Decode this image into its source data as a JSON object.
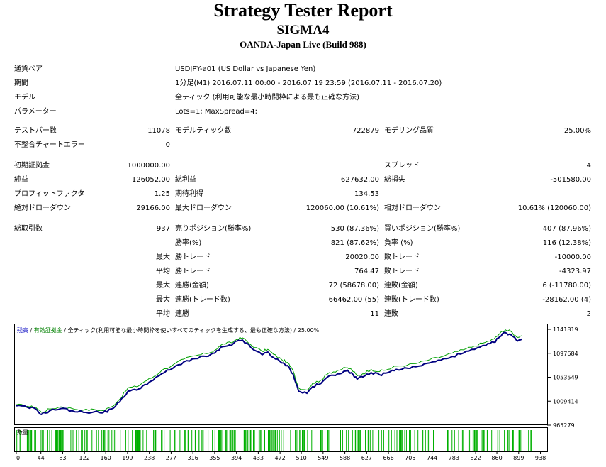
{
  "header": {
    "title": "Strategy Tester Report",
    "expert": "SIGMA4",
    "server": "OANDA-Japan Live (Build 988)"
  },
  "info": {
    "symbol_label": "通貨ペア",
    "symbol_value": "USDJPY-a01 (US Dollar vs Japanese Yen)",
    "period_label": "期間",
    "period_value": "1分足(M1) 2016.07.11 00:00 - 2016.07.19 23:59 (2016.07.11 - 2016.07.20)",
    "model_label": "モデル",
    "model_value": "全ティック (利用可能な最小時間枠による最も正確な方法)",
    "params_label": "パラメーター",
    "params_value": "Lots=1; MaxSpread=4;"
  },
  "stats": {
    "bars_label": "テストバー数",
    "bars_value": "11078",
    "ticks_label": "モデルティック数",
    "ticks_value": "722879",
    "quality_label": "モデリング品質",
    "quality_value": "25.00%",
    "mismatch_label": "不整合チャートエラー",
    "mismatch_value": "0",
    "deposit_label": "初期証拠金",
    "deposit_value": "1000000.00",
    "spread_label": "スプレッド",
    "spread_value": "4",
    "net_label": "純益",
    "net_value": "126052.00",
    "gross_profit_label": "総利益",
    "gross_profit_value": "627632.00",
    "gross_loss_label": "総損失",
    "gross_loss_value": "-501580.00",
    "pf_label": "プロフィットファクタ",
    "pf_value": "1.25",
    "payoff_label": "期待利得",
    "payoff_value": "134.53",
    "abs_dd_label": "絶対ドローダウン",
    "abs_dd_value": "29166.00",
    "max_dd_label": "最大ドローダウン",
    "max_dd_value": "120060.00 (10.61%)",
    "rel_dd_label": "相対ドローダウン",
    "rel_dd_value": "10.61% (120060.00)",
    "total_trades_label": "総取引数",
    "total_trades_value": "937",
    "short_label": "売りポジション(勝率%)",
    "short_value": "530 (87.36%)",
    "long_label": "買いポジション(勝率%)",
    "long_value": "407 (87.96%)",
    "win_pct_label": "勝率(%)",
    "win_pct_value": "821 (87.62%)",
    "loss_pct_label": "負率 (%)",
    "loss_pct_value": "116 (12.38%)",
    "max_word": "最大",
    "avg_word": "平均",
    "win_trade_label": "勝トレード",
    "loss_trade_label": "敗トレード",
    "largest_win": "20020.00",
    "largest_loss": "-10000.00",
    "avg_win": "764.47",
    "avg_loss": "-4323.97",
    "consec_win_money_label": "連勝(金額)",
    "consec_win_money_value": "72 (58678.00)",
    "consec_loss_money_label": "連敗(金額)",
    "consec_loss_money_value": "6 (-11780.00)",
    "consec_win_trades_label": "連勝(トレード数)",
    "consec_win_trades_value": "66462.00 (55)",
    "consec_loss_trades_label": "連敗(トレード数)",
    "consec_loss_trades_value": "-28162.00 (4)",
    "avg_consec_win_label": "連勝",
    "avg_consec_win_value": "11",
    "avg_consec_loss_label": "連敗",
    "avg_consec_loss_value": "2"
  },
  "chart_data": {
    "type": "line",
    "legend": {
      "balance": "残高",
      "sep1": " / ",
      "equity": "有効証拠金",
      "sep2": " / ",
      "model": "全ティック(利用可能な最小時間枠を使いすべてのティックを生成する、最も正確な方法)",
      "sep3": " / ",
      "quality": "25.00%"
    },
    "volume_label": "数量",
    "colors": {
      "balance": "#000080",
      "equity": "#00a000",
      "volume": "#00b000",
      "text_blue": "#0000c0",
      "text_green": "#008000"
    },
    "ylim": [
      965279,
      1141819
    ],
    "y_ticks": [
      "1141819",
      "1097684",
      "1053549",
      "1009414",
      "965279"
    ],
    "x_ticks": [
      "0",
      "44",
      "83",
      "122",
      "160",
      "199",
      "238",
      "277",
      "316",
      "355",
      "394",
      "433",
      "472",
      "510",
      "549",
      "588",
      "627",
      "666",
      "705",
      "744",
      "783",
      "822",
      "860",
      "899",
      "938"
    ],
    "x_tick_values": [
      0,
      44,
      83,
      122,
      160,
      199,
      238,
      277,
      316,
      355,
      394,
      433,
      472,
      510,
      549,
      588,
      627,
      666,
      705,
      744,
      783,
      822,
      860,
      899,
      938
    ],
    "xlim": [
      0,
      950
    ],
    "balance": [
      [
        0,
        1001000
      ],
      [
        20,
        998000
      ],
      [
        35,
        995000
      ],
      [
        45,
        985000
      ],
      [
        60,
        992000
      ],
      [
        80,
        996000
      ],
      [
        100,
        992000
      ],
      [
        120,
        989000
      ],
      [
        140,
        990000
      ],
      [
        155,
        988000
      ],
      [
        170,
        995000
      ],
      [
        185,
        1008000
      ],
      [
        200,
        1028000
      ],
      [
        215,
        1030000
      ],
      [
        230,
        1040000
      ],
      [
        245,
        1048000
      ],
      [
        260,
        1060000
      ],
      [
        280,
        1070000
      ],
      [
        300,
        1082000
      ],
      [
        320,
        1088000
      ],
      [
        340,
        1092000
      ],
      [
        355,
        1098000
      ],
      [
        370,
        1110000
      ],
      [
        385,
        1112000
      ],
      [
        395,
        1120000
      ],
      [
        405,
        1122000
      ],
      [
        420,
        1108000
      ],
      [
        440,
        1095000
      ],
      [
        450,
        1100000
      ],
      [
        460,
        1090000
      ],
      [
        475,
        1080000
      ],
      [
        485,
        1075000
      ],
      [
        495,
        1060000
      ],
      [
        505,
        1028000
      ],
      [
        520,
        1024000
      ],
      [
        530,
        1036000
      ],
      [
        545,
        1042000
      ],
      [
        560,
        1056000
      ],
      [
        575,
        1060000
      ],
      [
        590,
        1065000
      ],
      [
        600,
        1062000
      ],
      [
        610,
        1050000
      ],
      [
        620,
        1054000
      ],
      [
        635,
        1062000
      ],
      [
        650,
        1058000
      ],
      [
        665,
        1062000
      ],
      [
        680,
        1068000
      ],
      [
        700,
        1070000
      ],
      [
        720,
        1074000
      ],
      [
        740,
        1080000
      ],
      [
        760,
        1085000
      ],
      [
        780,
        1092000
      ],
      [
        800,
        1098000
      ],
      [
        820,
        1105000
      ],
      [
        840,
        1112000
      ],
      [
        855,
        1118000
      ],
      [
        865,
        1128000
      ],
      [
        875,
        1136000
      ],
      [
        885,
        1132000
      ],
      [
        895,
        1122000
      ],
      [
        905,
        1124000
      ]
    ],
    "equity": [
      [
        0,
        1003000
      ],
      [
        20,
        1000000
      ],
      [
        35,
        998000
      ],
      [
        45,
        989000
      ],
      [
        60,
        995000
      ],
      [
        80,
        999000
      ],
      [
        100,
        996000
      ],
      [
        120,
        993000
      ],
      [
        140,
        994000
      ],
      [
        155,
        992000
      ],
      [
        170,
        999000
      ],
      [
        185,
        1013000
      ],
      [
        200,
        1034000
      ],
      [
        215,
        1036000
      ],
      [
        230,
        1046000
      ],
      [
        245,
        1054000
      ],
      [
        260,
        1066000
      ],
      [
        280,
        1076000
      ],
      [
        300,
        1087000
      ],
      [
        320,
        1093000
      ],
      [
        340,
        1097000
      ],
      [
        355,
        1103000
      ],
      [
        370,
        1115000
      ],
      [
        385,
        1117000
      ],
      [
        395,
        1124000
      ],
      [
        405,
        1126000
      ],
      [
        420,
        1113000
      ],
      [
        440,
        1101000
      ],
      [
        450,
        1105000
      ],
      [
        460,
        1096000
      ],
      [
        475,
        1086000
      ],
      [
        485,
        1081000
      ],
      [
        495,
        1066000
      ],
      [
        505,
        1034000
      ],
      [
        520,
        1030000
      ],
      [
        530,
        1042000
      ],
      [
        545,
        1048000
      ],
      [
        560,
        1062000
      ],
      [
        575,
        1066000
      ],
      [
        590,
        1071000
      ],
      [
        600,
        1068000
      ],
      [
        610,
        1056000
      ],
      [
        620,
        1060000
      ],
      [
        635,
        1068000
      ],
      [
        650,
        1064000
      ],
      [
        665,
        1068000
      ],
      [
        680,
        1074000
      ],
      [
        700,
        1076000
      ],
      [
        720,
        1080000
      ],
      [
        740,
        1086000
      ],
      [
        760,
        1091000
      ],
      [
        780,
        1098000
      ],
      [
        800,
        1104000
      ],
      [
        820,
        1111000
      ],
      [
        840,
        1118000
      ],
      [
        855,
        1124000
      ],
      [
        865,
        1134000
      ],
      [
        875,
        1141000
      ],
      [
        885,
        1138000
      ],
      [
        895,
        1128000
      ],
      [
        905,
        1130000
      ]
    ]
  }
}
